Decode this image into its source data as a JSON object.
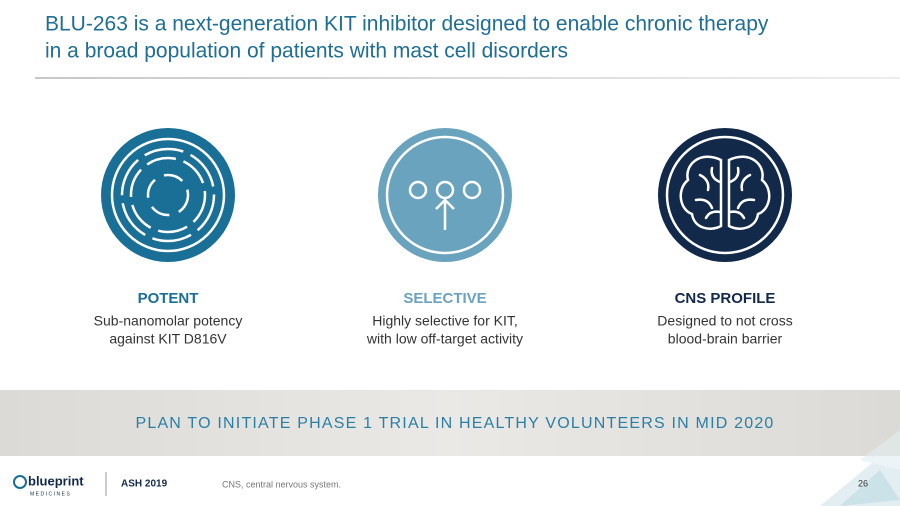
{
  "header": {
    "title_lines": [
      "BLU-263 is a next-generation KIT inhibitor designed to enable chronic therapy",
      "in a broad population of patients with mast cell disorders"
    ]
  },
  "features": [
    {
      "heading": "POTENT",
      "lines": [
        "Sub-nanomolar potency",
        "against KIT D816V"
      ]
    },
    {
      "heading": "SELECTIVE",
      "lines": [
        "Highly selective for KIT,",
        "with low off-target activity"
      ]
    },
    {
      "heading": "CNS PROFILE",
      "lines": [
        "Designed to not cross",
        "blood-brain barrier"
      ]
    }
  ],
  "banner": "PLAN TO INITIATE PHASE 1 TRIAL IN HEALTHY VOLUNTEERS IN MID 2020",
  "footer": {
    "logo": "blueprint",
    "logo_sub": "MEDICINES",
    "meeting": "ASH 2019",
    "footnote": "CNS, central nervous system.",
    "page": "26"
  }
}
